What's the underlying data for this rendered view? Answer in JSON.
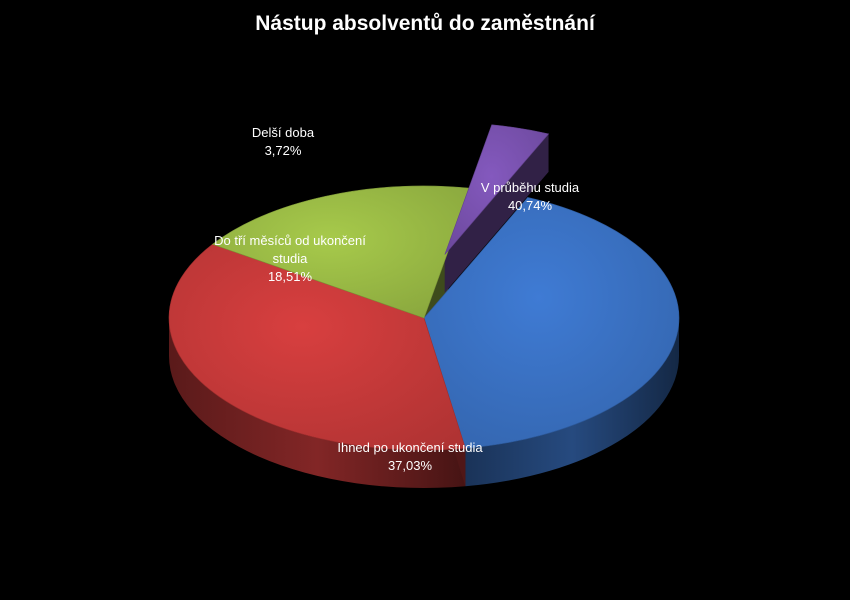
{
  "chart_data": {
    "type": "pie",
    "title": "Nástup absolventů do zaměstnání",
    "slices": [
      {
        "label": "V průběhu studia",
        "value": 40.74,
        "value_label": "40,74%",
        "color": "#3a72c4",
        "exploded": false
      },
      {
        "label": "Ihned po ukončení studia",
        "value": 37.03,
        "value_label": "37,03%",
        "color": "#c83a3a",
        "exploded": false
      },
      {
        "label": "Do tří měsíců od ukončení studia",
        "value": 18.51,
        "value_label": "18,51%",
        "color": "#9bbb45",
        "exploded": false
      },
      {
        "label": "Delší doba",
        "value": 3.72,
        "value_label": "3,72%",
        "color": "#7a52b0",
        "exploded": true
      }
    ],
    "legend": "none",
    "style": "3d-exploded"
  }
}
